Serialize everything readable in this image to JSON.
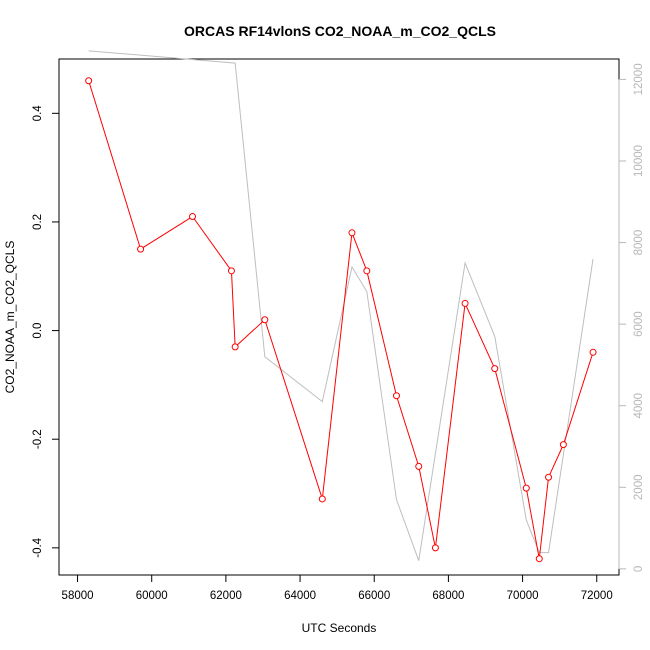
{
  "chart_data": {
    "type": "line",
    "title": "ORCAS RF14vlonS CO2_NOAA_m_CO2_QCLS",
    "xlabel": "UTC Seconds",
    "ylabel": "CO2_NOAA_m_CO2_QCLS",
    "xlim": [
      57500,
      72600
    ],
    "ylim": [
      -0.45,
      0.5
    ],
    "y2lim": [
      -150,
      12500
    ],
    "x_ticks": [
      58000,
      60000,
      62000,
      64000,
      66000,
      68000,
      70000,
      72000
    ],
    "y_ticks": [
      -0.4,
      -0.2,
      0.0,
      0.2,
      0.4
    ],
    "y_tick_labels": [
      "-0.4",
      "-0.2",
      "0.0",
      "0.2",
      "0.4"
    ],
    "y2_ticks": [
      0,
      2000,
      4000,
      6000,
      8000,
      10000,
      12000
    ],
    "grid": false,
    "legend": "none",
    "series": [
      {
        "axis": "left",
        "color": "#ff0000",
        "marker": "open-circle",
        "points": [
          {
            "x": 58300,
            "y": 0.46
          },
          {
            "x": 59700,
            "y": 0.15
          },
          {
            "x": 61100,
            "y": 0.21
          },
          {
            "x": 62150,
            "y": 0.11
          },
          {
            "x": 62250,
            "y": -0.03
          },
          {
            "x": 63050,
            "y": 0.02
          },
          {
            "x": 64600,
            "y": -0.31
          },
          {
            "x": 65400,
            "y": 0.18
          },
          {
            "x": 65800,
            "y": 0.11
          },
          {
            "x": 66600,
            "y": -0.12
          },
          {
            "x": 67200,
            "y": -0.25
          },
          {
            "x": 67650,
            "y": -0.4
          },
          {
            "x": 68450,
            "y": 0.05
          },
          {
            "x": 69250,
            "y": -0.07
          },
          {
            "x": 70100,
            "y": -0.29
          },
          {
            "x": 70450,
            "y": -0.42
          },
          {
            "x": 70700,
            "y": -0.27
          },
          {
            "x": 71100,
            "y": -0.21
          },
          {
            "x": 71900,
            "y": -0.04
          }
        ]
      },
      {
        "axis": "right",
        "color": "#bebebe",
        "marker": "none",
        "points": [
          {
            "x": 58300,
            "y": 12700
          },
          {
            "x": 62250,
            "y": 12400
          },
          {
            "x": 63050,
            "y": 5200
          },
          {
            "x": 64600,
            "y": 4100
          },
          {
            "x": 65400,
            "y": 7400
          },
          {
            "x": 65800,
            "y": 6800
          },
          {
            "x": 66600,
            "y": 1700
          },
          {
            "x": 67200,
            "y": 200
          },
          {
            "x": 68450,
            "y": 7500
          },
          {
            "x": 69250,
            "y": 5700
          },
          {
            "x": 70100,
            "y": 1200
          },
          {
            "x": 70450,
            "y": 400
          },
          {
            "x": 70700,
            "y": 400
          },
          {
            "x": 71900,
            "y": 7600
          }
        ]
      }
    ]
  }
}
